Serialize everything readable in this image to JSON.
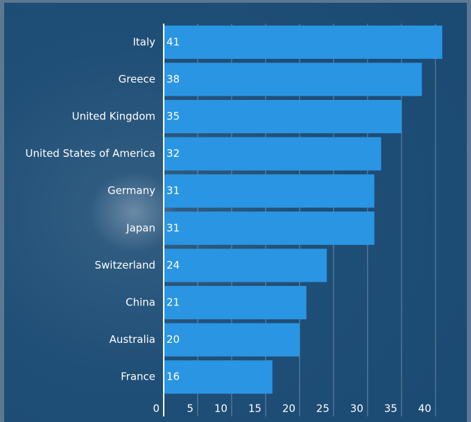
{
  "chart_data": {
    "type": "bar",
    "orientation": "horizontal",
    "categories": [
      "Italy",
      "Greece",
      "United Kingdom",
      "United States of America",
      "Germany",
      "Japan",
      "Switzerland",
      "China",
      "Australia",
      "France"
    ],
    "values": [
      41,
      38,
      35,
      32,
      31,
      31,
      24,
      21,
      20,
      16
    ],
    "color": "#2a95e2",
    "xlim": [
      0,
      44
    ],
    "xticks": [
      0,
      5,
      10,
      15,
      20,
      25,
      30,
      35,
      40
    ],
    "grid": true
  }
}
